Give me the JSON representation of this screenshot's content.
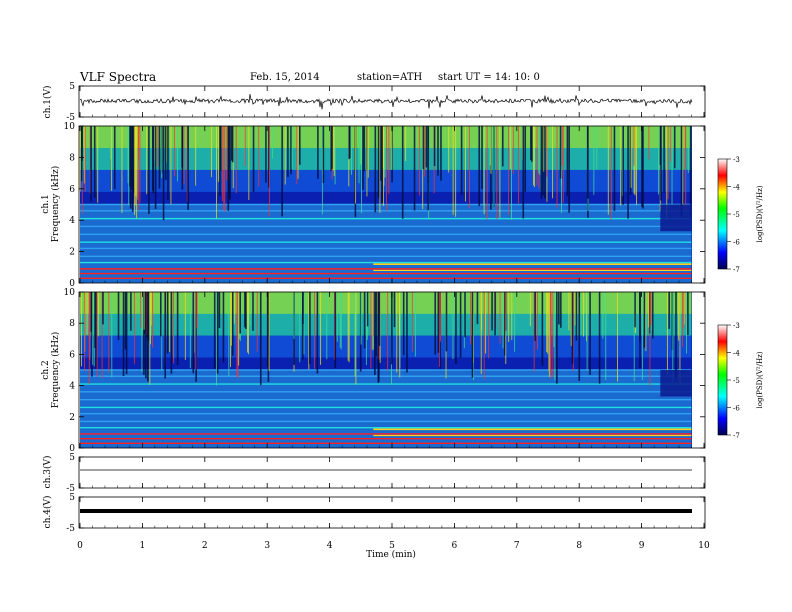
{
  "header": {
    "title": "VLF  Spectra",
    "date": "Feb. 15, 2014",
    "station": "station=ATH",
    "start": "start  UT  =   14: 10: 0"
  },
  "chart_data": [
    {
      "type": "line",
      "panel": "ch1",
      "ylabel": "ch.1(V)",
      "ylim": [
        -5,
        5
      ],
      "yticks": [
        "5",
        "-5"
      ],
      "xlim": [
        0,
        10
      ],
      "baseline": 0
    },
    {
      "type": "heatmap",
      "panel": "spec1",
      "ylabel_top": "ch.1",
      "ylabel": "Frequency  (kHz)",
      "ylim": [
        0,
        10
      ],
      "yticks": [
        "0",
        "2",
        "4",
        "6",
        "8",
        "10"
      ],
      "xlim": [
        0,
        9.8
      ],
      "colorbar": {
        "label": "log(PSD)(V²/Hz)",
        "range": [
          -7,
          -3
        ],
        "ticks": [
          "-3",
          "-4",
          "-5",
          "-6",
          "-7"
        ],
        "colors": [
          "#ffffff",
          "#ff0000",
          "#ffff00",
          "#00ff00",
          "#00ffff",
          "#0000ff",
          "#000050"
        ]
      }
    },
    {
      "type": "heatmap",
      "panel": "spec2",
      "ylabel_top": "ch.2",
      "ylabel": "Frequency  (kHz)",
      "ylim": [
        0,
        10
      ],
      "yticks": [
        "0",
        "2",
        "4",
        "6",
        "8",
        "10"
      ],
      "xlim": [
        0,
        9.8
      ],
      "colorbar": {
        "label": "log(PSD)(V²/Hz)",
        "range": [
          -7,
          -3
        ],
        "ticks": [
          "-3",
          "-4",
          "-5",
          "-6",
          "-7"
        ],
        "colors": [
          "#ffffff",
          "#ff0000",
          "#ffff00",
          "#00ff00",
          "#00ffff",
          "#0000ff",
          "#000050"
        ]
      }
    },
    {
      "type": "line",
      "panel": "ch3",
      "ylabel": "ch.3(V)",
      "ylim": [
        -5,
        5
      ],
      "yticks": [
        "5",
        "-5"
      ],
      "xlim": [
        0,
        10
      ],
      "baseline": 0
    },
    {
      "type": "line",
      "panel": "ch4",
      "ylabel": "ch.4(V)",
      "ylim": [
        -5,
        5
      ],
      "yticks": [
        "5",
        "-5"
      ],
      "xlim": [
        0,
        10
      ],
      "baseline": 0,
      "xlabel": "Time  (min)",
      "xticks": [
        "0",
        "1",
        "2",
        "3",
        "4",
        "5",
        "6",
        "7",
        "8",
        "9",
        "10"
      ]
    }
  ]
}
